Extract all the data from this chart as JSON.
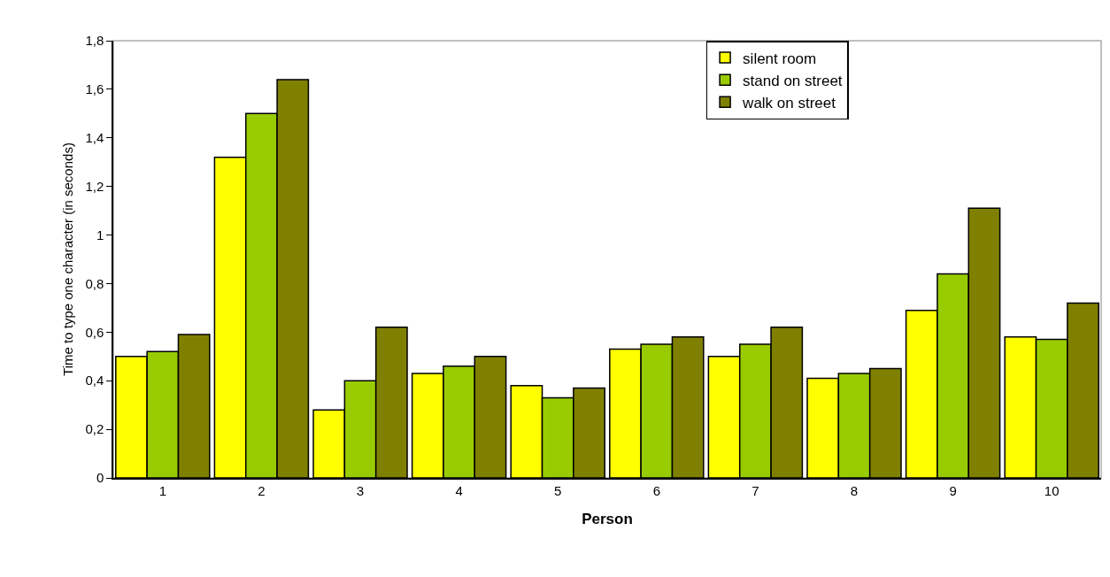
{
  "chart_data": {
    "type": "bar",
    "xlabel": "Person",
    "ylabel": "Time to type one character (in seconds)",
    "categories": [
      "1",
      "2",
      "3",
      "4",
      "5",
      "6",
      "7",
      "8",
      "9",
      "10"
    ],
    "series": [
      {
        "name": "silent room",
        "color": "#ffff00",
        "values": [
          0.5,
          1.32,
          0.28,
          0.43,
          0.38,
          0.53,
          0.5,
          0.41,
          0.69,
          0.58
        ]
      },
      {
        "name": "stand on street",
        "color": "#99cc00",
        "values": [
          0.52,
          1.5,
          0.4,
          0.46,
          0.33,
          0.55,
          0.55,
          0.43,
          0.84,
          0.57
        ]
      },
      {
        "name": "walk on street",
        "color": "#808000",
        "values": [
          0.59,
          1.64,
          0.62,
          0.5,
          0.37,
          0.58,
          0.62,
          0.45,
          1.11,
          0.72
        ]
      }
    ],
    "ylim": [
      0,
      1.8
    ],
    "yticks": [
      0,
      {
        "value": 0.2,
        "label": "0,2"
      },
      {
        "value": 0.4,
        "label": "0,4"
      },
      {
        "value": 0.6,
        "label": "0,6"
      },
      {
        "value": 0.8,
        "label": "0,8"
      },
      1,
      {
        "value": 1.2,
        "label": "1,2"
      },
      {
        "value": 1.4,
        "label": "1,4"
      },
      {
        "value": 1.6,
        "label": "1,6"
      },
      {
        "value": 1.8,
        "label": "1,8"
      }
    ],
    "grid": false,
    "legend": "top right"
  }
}
